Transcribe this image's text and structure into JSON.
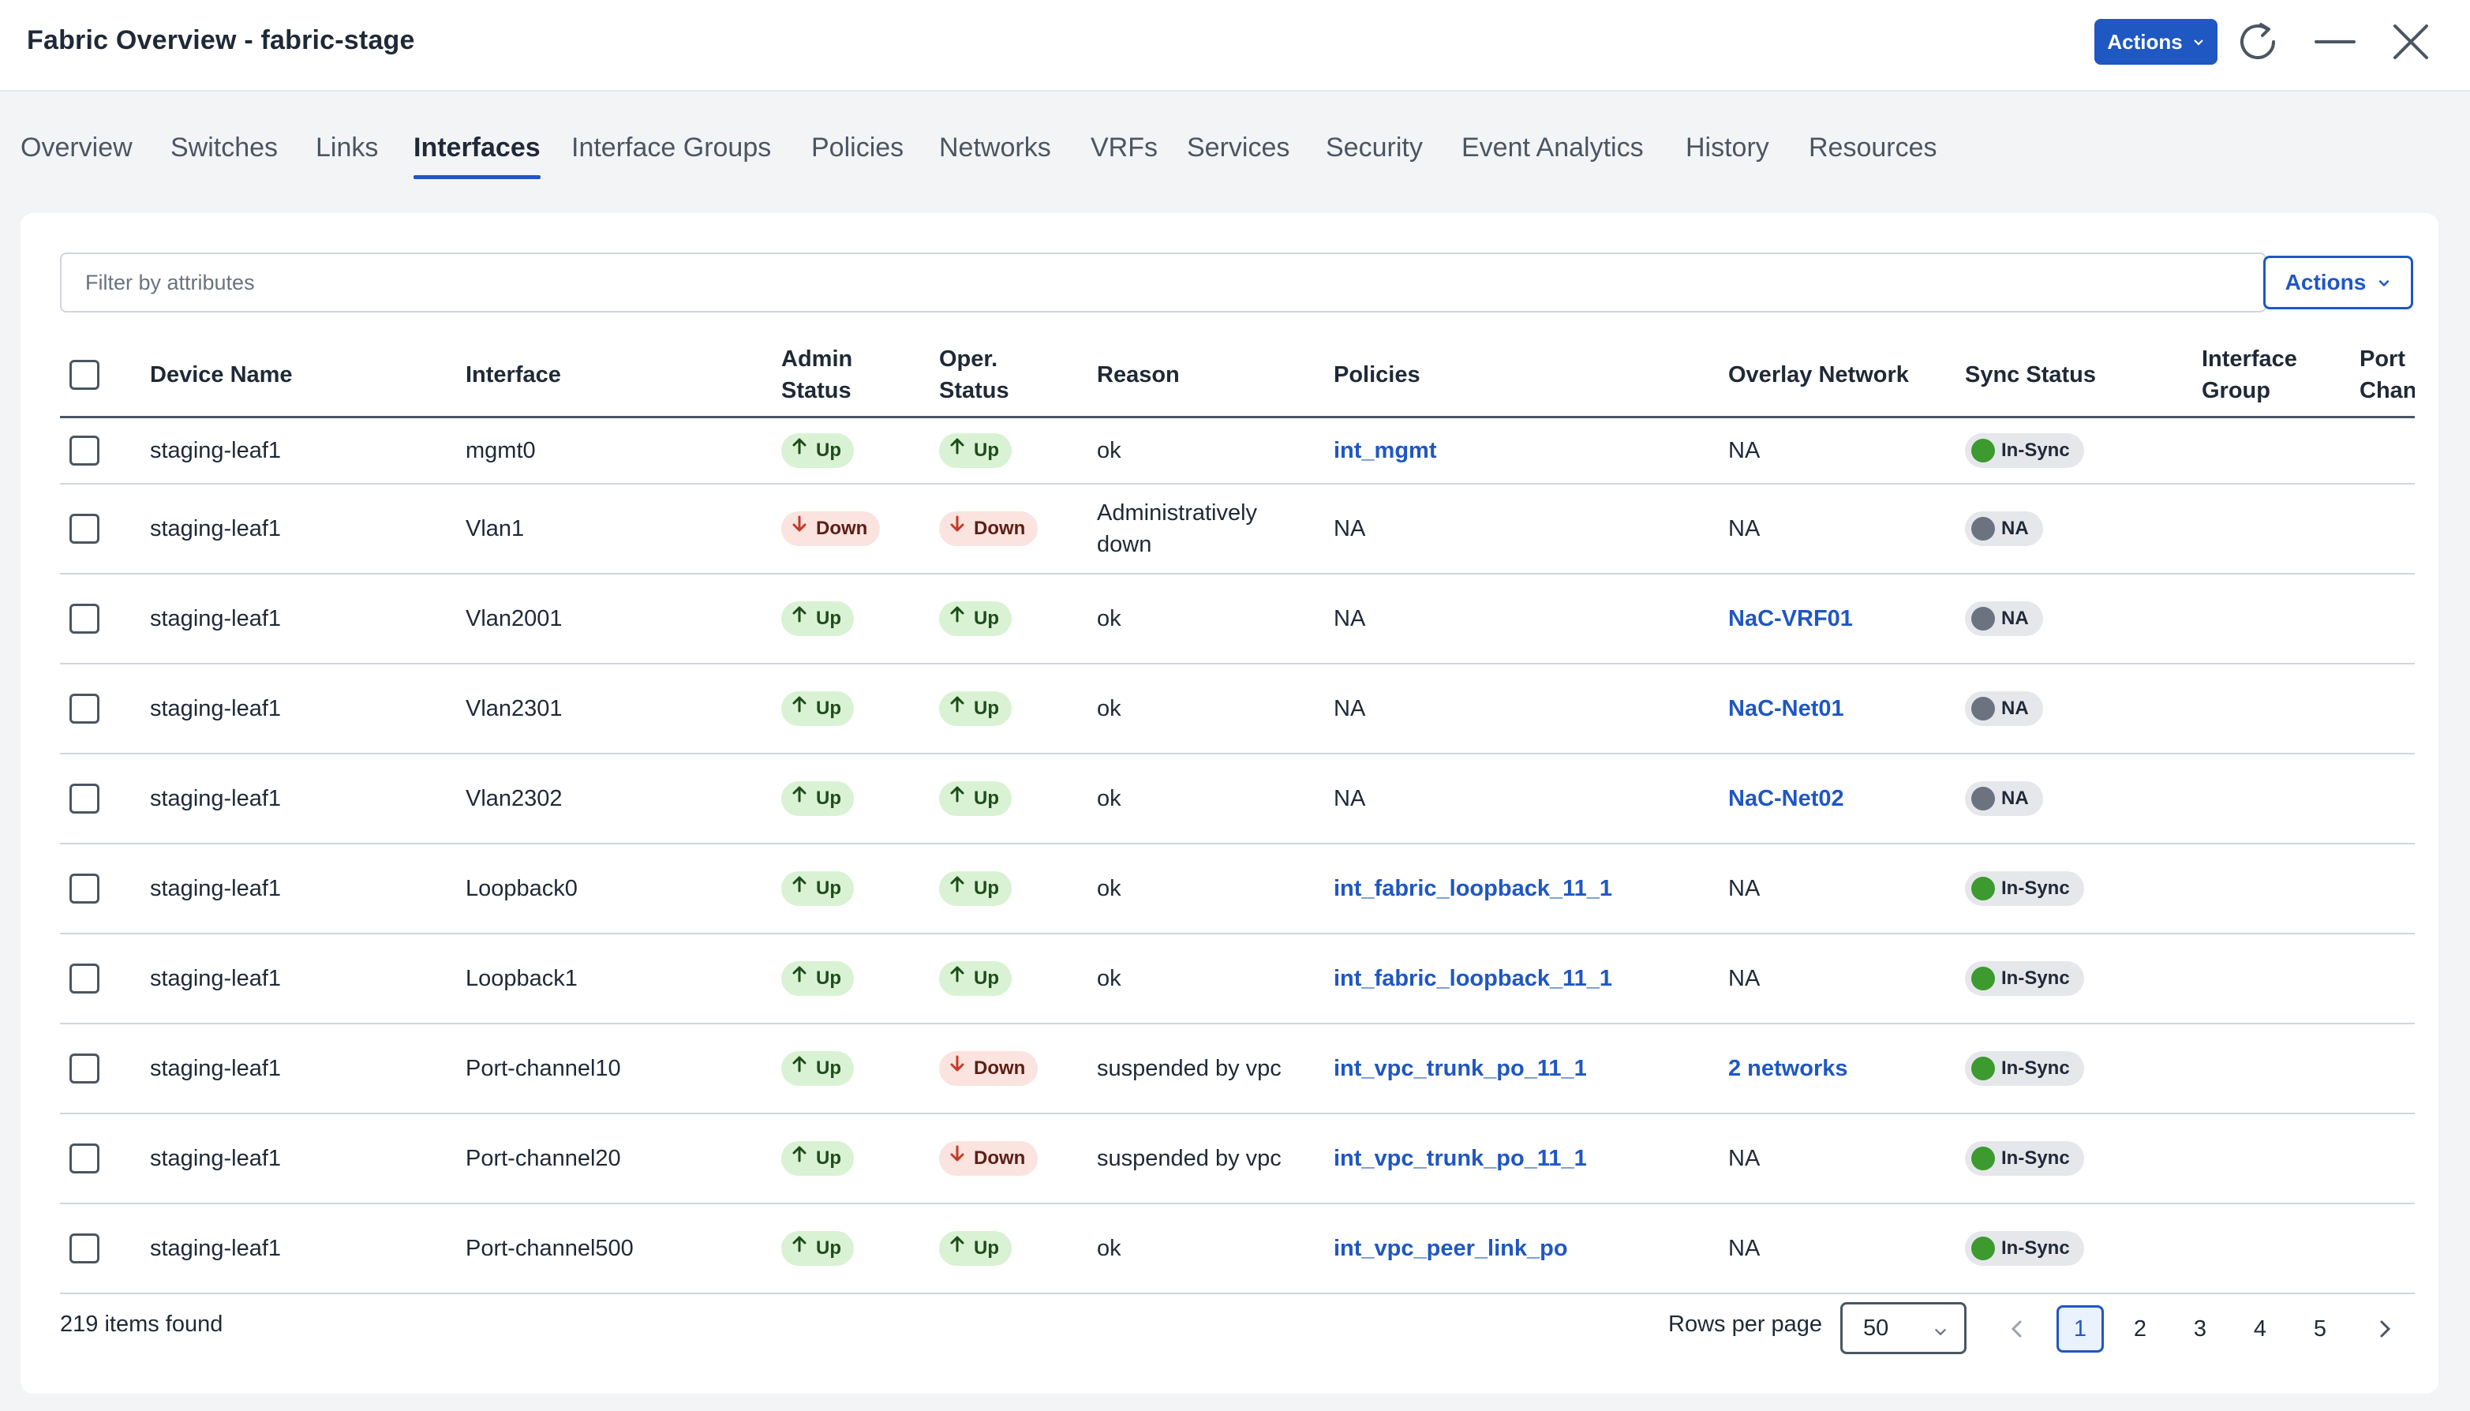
{
  "header": {
    "title": "Fabric Overview - fabric-stage",
    "actions_label": "Actions"
  },
  "tabs": [
    {
      "label": "Overview"
    },
    {
      "label": "Switches"
    },
    {
      "label": "Links"
    },
    {
      "label": "Interfaces",
      "active": true
    },
    {
      "label": "Interface Groups"
    },
    {
      "label": "Policies"
    },
    {
      "label": "Networks"
    },
    {
      "label": "VRFs"
    },
    {
      "label": "Services"
    },
    {
      "label": "Security"
    },
    {
      "label": "Event Analytics"
    },
    {
      "label": "History"
    },
    {
      "label": "Resources"
    }
  ],
  "filter": {
    "placeholder": "Filter by attributes",
    "value": ""
  },
  "card_actions_label": "Actions",
  "table": {
    "columns": {
      "device_name": "Device Name",
      "interface": "Interface",
      "admin_status_1": "Admin",
      "admin_status_2": "Status",
      "oper_status_1": "Oper.",
      "oper_status_2": "Status",
      "reason": "Reason",
      "policies": "Policies",
      "overlay_network": "Overlay Network",
      "sync_status": "Sync Status",
      "interface_group_1": "Interface",
      "interface_group_2": "Group",
      "port_channel_1": "Port",
      "port_channel_2": "Channel"
    },
    "rows": [
      {
        "device": "staging-leaf1",
        "interface": "mgmt0",
        "admin": "Up",
        "oper": "Up",
        "reason": "ok",
        "policies": "int_mgmt",
        "policies_link": true,
        "overlay": "NA",
        "overlay_link": false,
        "sync": "In-Sync"
      },
      {
        "device": "staging-leaf1",
        "interface": "Vlan1",
        "admin": "Down",
        "oper": "Down",
        "reason": "Administratively down",
        "policies": "NA",
        "policies_link": false,
        "overlay": "NA",
        "overlay_link": false,
        "sync": "NA"
      },
      {
        "device": "staging-leaf1",
        "interface": "Vlan2001",
        "admin": "Up",
        "oper": "Up",
        "reason": "ok",
        "policies": "NA",
        "policies_link": false,
        "overlay": "NaC-VRF01",
        "overlay_link": true,
        "sync": "NA"
      },
      {
        "device": "staging-leaf1",
        "interface": "Vlan2301",
        "admin": "Up",
        "oper": "Up",
        "reason": "ok",
        "policies": "NA",
        "policies_link": false,
        "overlay": "NaC-Net01",
        "overlay_link": true,
        "sync": "NA"
      },
      {
        "device": "staging-leaf1",
        "interface": "Vlan2302",
        "admin": "Up",
        "oper": "Up",
        "reason": "ok",
        "policies": "NA",
        "policies_link": false,
        "overlay": "NaC-Net02",
        "overlay_link": true,
        "sync": "NA"
      },
      {
        "device": "staging-leaf1",
        "interface": "Loopback0",
        "admin": "Up",
        "oper": "Up",
        "reason": "ok",
        "policies": "int_fabric_loopback_11_1",
        "policies_link": true,
        "overlay": "NA",
        "overlay_link": false,
        "sync": "In-Sync"
      },
      {
        "device": "staging-leaf1",
        "interface": "Loopback1",
        "admin": "Up",
        "oper": "Up",
        "reason": "ok",
        "policies": "int_fabric_loopback_11_1",
        "policies_link": true,
        "overlay": "NA",
        "overlay_link": false,
        "sync": "In-Sync"
      },
      {
        "device": "staging-leaf1",
        "interface": "Port-channel10",
        "admin": "Up",
        "oper": "Down",
        "reason": "suspended by vpc",
        "policies": "int_vpc_trunk_po_11_1",
        "policies_link": true,
        "overlay": "2 networks",
        "overlay_link": true,
        "sync": "In-Sync"
      },
      {
        "device": "staging-leaf1",
        "interface": "Port-channel20",
        "admin": "Up",
        "oper": "Down",
        "reason": "suspended by vpc",
        "policies": "int_vpc_trunk_po_11_1",
        "policies_link": true,
        "overlay": "NA",
        "overlay_link": false,
        "sync": "In-Sync"
      },
      {
        "device": "staging-leaf1",
        "interface": "Port-channel500",
        "admin": "Up",
        "oper": "Up",
        "reason": "ok",
        "policies": "int_vpc_peer_link_po",
        "policies_link": true,
        "overlay": "NA",
        "overlay_link": false,
        "sync": "In-Sync"
      }
    ]
  },
  "footer": {
    "items_found": "219 items found",
    "rows_per_page_label": "Rows per page",
    "rows_per_page_value": "50",
    "pages": [
      "1",
      "2",
      "3",
      "4",
      "5"
    ],
    "current_page": "1"
  },
  "colors": {
    "accent": "#1f57c3",
    "up_bg": "#d9f2d3",
    "down_bg": "#fbe3df",
    "in_sync": "#3c9a2f",
    "na_sync": "#6b7280"
  }
}
